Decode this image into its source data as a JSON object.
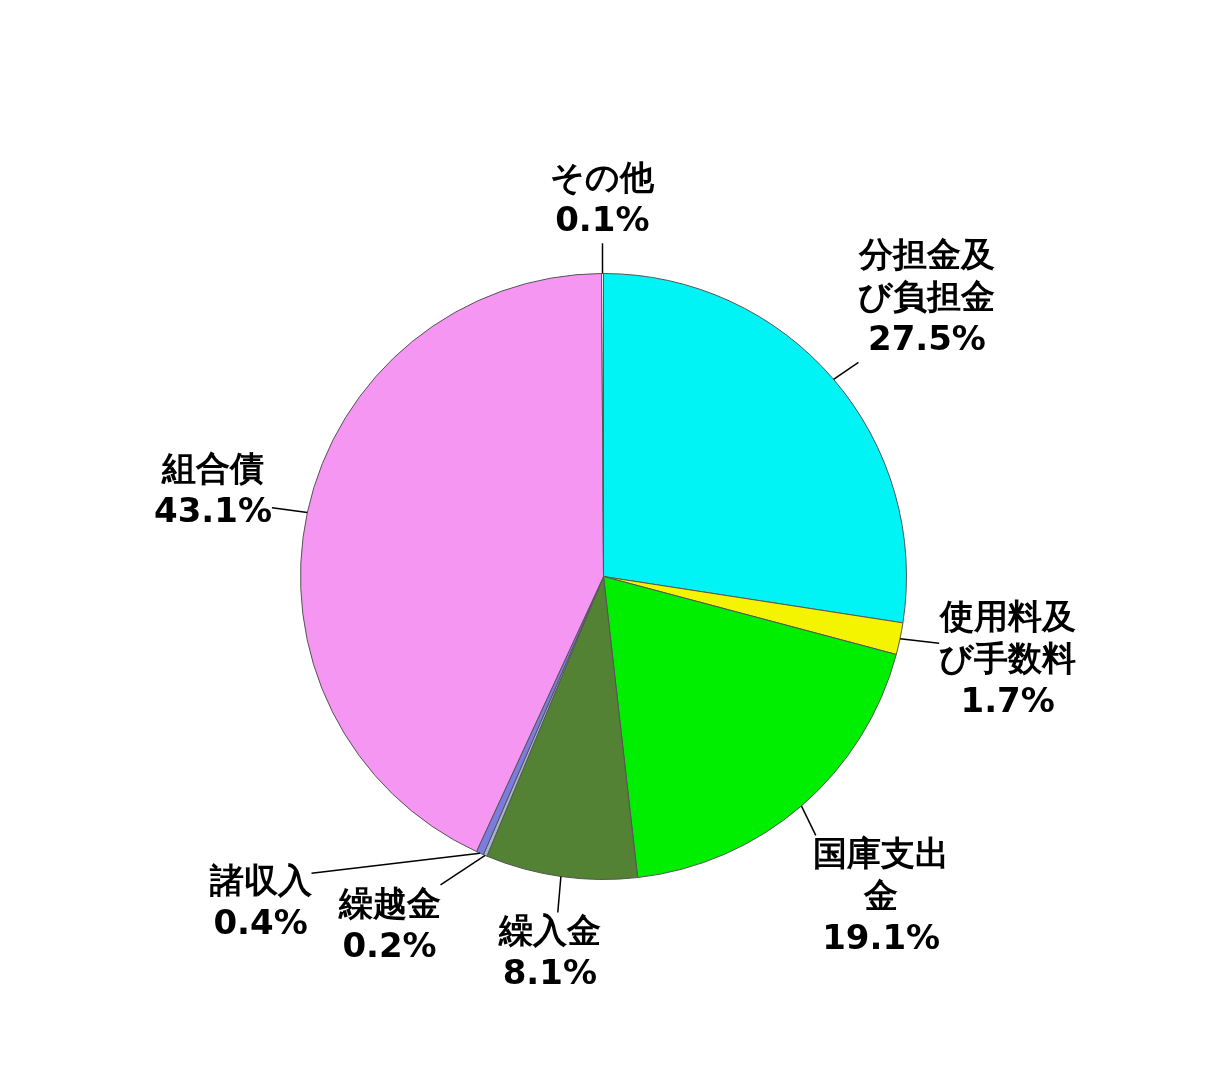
{
  "chart_data": {
    "type": "pie",
    "categories": [
      "分担金及び負担金",
      "使用料及び手数料",
      "国庫支出金",
      "繰入金",
      "繰越金",
      "諸収入",
      "組合債",
      "その他"
    ],
    "values": [
      27.5,
      1.7,
      19.1,
      8.1,
      0.2,
      0.4,
      43.1,
      0.1
    ],
    "value_labels": [
      "27.5%",
      "1.7%",
      "19.1%",
      "8.1%",
      "0.2%",
      "0.4%",
      "43.1%",
      "0.1%"
    ],
    "colors": [
      "#00f4f6",
      "#f4f400",
      "#00ee00",
      "#548235",
      "#a3b6c8",
      "#7b7be0",
      "#f596f2",
      "#ffffff"
    ],
    "legend": false
  }
}
